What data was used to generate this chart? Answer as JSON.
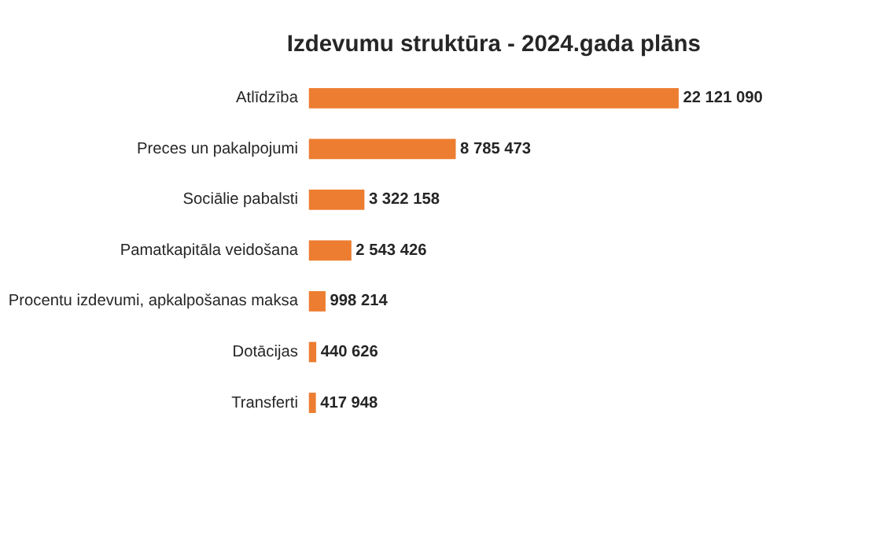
{
  "chart_data": {
    "type": "bar",
    "orientation": "horizontal",
    "title": "Izdevumu struktūra - 2024.gada plāns",
    "categories": [
      "Atlīdzība",
      "Preces un pakalpojumi",
      "Sociālie pabalsti",
      "Pamatkapitāla veidošana",
      "Procentu izdevumi, apkalpošanas maksa",
      "Dotācijas",
      "Transferti"
    ],
    "values": [
      22121090,
      8785473,
      3322158,
      2543426,
      998214,
      440626,
      417948
    ],
    "value_labels": [
      "22 121 090",
      "8 785 473",
      "3 322 158",
      "2 543 426",
      "998 214",
      "440 626",
      "417 948"
    ],
    "color": "#ed7d31"
  }
}
